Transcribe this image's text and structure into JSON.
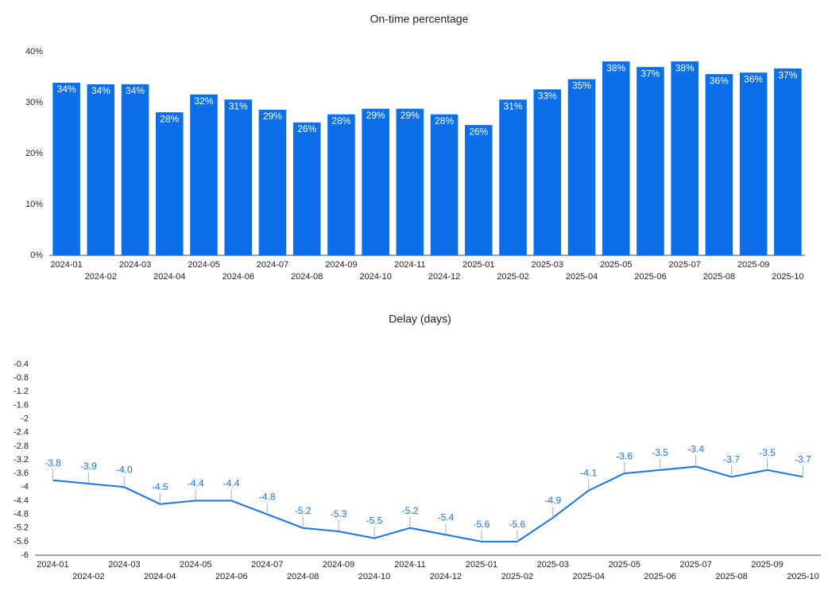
{
  "chart_data": [
    {
      "type": "bar",
      "title": "On-time percentage",
      "categories": [
        "2024-01",
        "2024-02",
        "2024-03",
        "2024-04",
        "2024-05",
        "2024-06",
        "2024-07",
        "2024-08",
        "2024-09",
        "2024-10",
        "2024-11",
        "2024-12",
        "2025-01",
        "2025-02",
        "2025-03",
        "2025-04",
        "2025-05",
        "2025-06",
        "2025-07",
        "2025-08",
        "2025-09",
        "2025-10"
      ],
      "values": [
        33.9,
        33.6,
        33.6,
        28.1,
        31.6,
        30.6,
        28.6,
        26.1,
        27.7,
        28.8,
        28.8,
        27.7,
        25.6,
        30.6,
        32.6,
        34.6,
        38.1,
        37.0,
        38.1,
        35.6,
        35.9,
        36.7
      ],
      "value_labels": [
        "34%",
        "34%",
        "34%",
        "28%",
        "32%",
        "31%",
        "29%",
        "26%",
        "28%",
        "29%",
        "29%",
        "28%",
        "26%",
        "31%",
        "33%",
        "35%",
        "38%",
        "37%",
        "38%",
        "36%",
        "36%",
        "37%"
      ],
      "color": "#0b6fe9",
      "ylim": [
        0,
        40
      ],
      "yticks": [
        {
          "value": 0,
          "label": "0%"
        },
        {
          "value": 10,
          "label": "10%"
        },
        {
          "value": 20,
          "label": "20%"
        },
        {
          "value": 30,
          "label": "30%"
        },
        {
          "value": 40,
          "label": "40%"
        }
      ]
    },
    {
      "type": "line",
      "title": "Delay (days)",
      "categories": [
        "2024-01",
        "2024-02",
        "2024-03",
        "2024-04",
        "2024-05",
        "2024-06",
        "2024-07",
        "2024-08",
        "2024-09",
        "2024-10",
        "2024-11",
        "2024-12",
        "2025-01",
        "2025-02",
        "2025-03",
        "2025-04",
        "2025-05",
        "2025-06",
        "2025-07",
        "2025-08",
        "2025-09",
        "2025-10"
      ],
      "values": [
        -3.8,
        -3.9,
        -4.0,
        -4.5,
        -4.4,
        -4.4,
        -4.8,
        -5.2,
        -5.3,
        -5.5,
        -5.2,
        -5.4,
        -5.6,
        -5.6,
        -4.9,
        -4.1,
        -3.6,
        -3.5,
        -3.4,
        -3.7,
        -3.5,
        -3.7
      ],
      "value_labels": [
        "-3.8",
        "-3.9",
        "-4.0",
        "-4.5",
        "-4.4",
        "-4.4",
        "-4.8",
        "-5.2",
        "-5.3",
        "-5.5",
        "-5.2",
        "-5.4",
        "-5.6",
        "-5.6",
        "-4.9",
        "-4.1",
        "-3.6",
        "-3.5",
        "-3.4",
        "-3.7",
        "-3.5",
        "-3.7"
      ],
      "color": "#1a73e8",
      "ylim": [
        -6,
        -0.4
      ],
      "yticks": [
        -0.4,
        -0.8,
        -1.2,
        -1.6,
        -2,
        -2.4,
        -2.8,
        -3.2,
        -3.6,
        -4,
        -4.4,
        -4.8,
        -5.2,
        -5.6,
        -6
      ]
    }
  ]
}
